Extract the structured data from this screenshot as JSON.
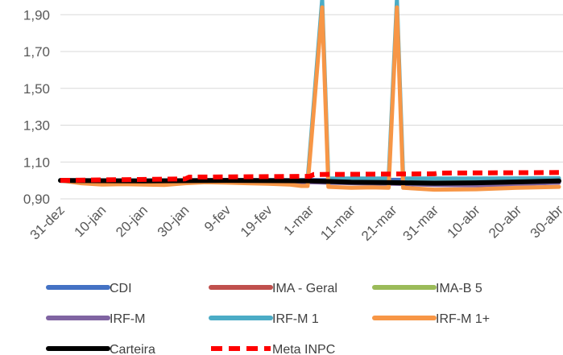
{
  "chart_data": {
    "type": "line",
    "title": "",
    "xlabel": "",
    "ylabel": "",
    "x_ticks": [
      "31-dez",
      "10-jan",
      "20-jan",
      "30-jan",
      "9-fev",
      "19-fev",
      "1-mar",
      "11-mar",
      "21-mar",
      "31-mar",
      "10-abr",
      "20-abr",
      "30-abr"
    ],
    "y_ticks": [
      "0,90",
      "1,10",
      "1,30",
      "1,50",
      "1,70",
      "1,90"
    ],
    "ylim": [
      0.9,
      1.98
    ],
    "x_range_days": [
      0,
      120
    ],
    "grid": "horizontal",
    "legend": "bottom",
    "series": [
      {
        "name": "CDI",
        "color": "#4472C4",
        "dash": "solid",
        "points": [
          [
            0,
            1.0
          ],
          [
            20,
            1.0
          ],
          [
            40,
            1.001
          ],
          [
            60,
            1.002
          ],
          [
            80,
            1.003
          ],
          [
            100,
            1.004
          ],
          [
            120,
            1.005
          ]
        ]
      },
      {
        "name": "IMA - Geral",
        "color": "#C0504D",
        "dash": "solid",
        "points": [
          [
            0,
            1.0
          ],
          [
            20,
            0.995
          ],
          [
            40,
            0.998
          ],
          [
            60,
            0.997
          ],
          [
            70,
            0.99
          ],
          [
            80,
            0.988
          ],
          [
            90,
            0.985
          ],
          [
            100,
            0.985
          ],
          [
            110,
            0.99
          ],
          [
            120,
            0.995
          ]
        ]
      },
      {
        "name": "IMA-B 5",
        "color": "#9BBB59",
        "dash": "solid",
        "points": [
          [
            0,
            1.0
          ],
          [
            20,
            0.997
          ],
          [
            40,
            0.999
          ],
          [
            60,
            0.998
          ],
          [
            70,
            0.993
          ],
          [
            80,
            0.99
          ],
          [
            90,
            0.988
          ],
          [
            100,
            0.99
          ],
          [
            110,
            0.993
          ],
          [
            120,
            0.997
          ]
        ]
      },
      {
        "name": "IRF-M",
        "color": "#8064A2",
        "dash": "solid",
        "points": [
          [
            0,
            1.0
          ],
          [
            20,
            0.992
          ],
          [
            40,
            0.995
          ],
          [
            60,
            0.99
          ],
          [
            70,
            0.985
          ],
          [
            80,
            0.982
          ],
          [
            90,
            0.975
          ],
          [
            100,
            0.973
          ],
          [
            110,
            0.98
          ],
          [
            120,
            0.988
          ]
        ]
      },
      {
        "name": "IRF-M 1",
        "color": "#4BACC6",
        "dash": "solid",
        "points": [
          [
            0,
            1.0
          ],
          [
            58,
            1.0
          ],
          [
            59.5,
            1.0
          ],
          [
            63,
            1.985
          ],
          [
            64.5,
            1.01
          ],
          [
            75,
            1.01
          ],
          [
            79,
            1.01
          ],
          [
            81,
            1.985
          ],
          [
            82.5,
            1.01
          ],
          [
            100,
            1.01
          ],
          [
            120,
            1.012
          ]
        ]
      },
      {
        "name": "IRF-M 1+",
        "color": "#F79646",
        "dash": "solid",
        "points": [
          [
            0,
            1.0
          ],
          [
            5,
            0.985
          ],
          [
            10,
            0.978
          ],
          [
            15,
            0.98
          ],
          [
            20,
            0.978
          ],
          [
            25,
            0.975
          ],
          [
            30,
            0.985
          ],
          [
            35,
            0.99
          ],
          [
            40,
            0.988
          ],
          [
            45,
            0.985
          ],
          [
            50,
            0.982
          ],
          [
            55,
            0.978
          ],
          [
            58,
            0.97
          ],
          [
            59.5,
            0.97
          ],
          [
            63,
            1.94
          ],
          [
            64.5,
            0.965
          ],
          [
            70,
            0.96
          ],
          [
            75,
            0.962
          ],
          [
            79,
            0.96
          ],
          [
            81,
            1.94
          ],
          [
            82.5,
            0.96
          ],
          [
            90,
            0.95
          ],
          [
            100,
            0.952
          ],
          [
            110,
            0.96
          ],
          [
            120,
            0.965
          ]
        ]
      },
      {
        "name": "Carteira",
        "color": "#000000",
        "dash": "solid",
        "points": [
          [
            0,
            1.0
          ],
          [
            20,
            0.997
          ],
          [
            40,
            1.0
          ],
          [
            60,
            0.998
          ],
          [
            70,
            0.99
          ],
          [
            80,
            0.988
          ],
          [
            90,
            0.985
          ],
          [
            100,
            0.987
          ],
          [
            110,
            0.992
          ],
          [
            120,
            0.997
          ]
        ]
      },
      {
        "name": "Meta INPC",
        "color": "#FF0000",
        "dash": "dashed",
        "points": [
          [
            0,
            1.0
          ],
          [
            30,
            1.008
          ],
          [
            31,
            1.018
          ],
          [
            60,
            1.022
          ],
          [
            61,
            1.032
          ],
          [
            90,
            1.036
          ],
          [
            91,
            1.04
          ],
          [
            120,
            1.043
          ]
        ]
      }
    ]
  }
}
